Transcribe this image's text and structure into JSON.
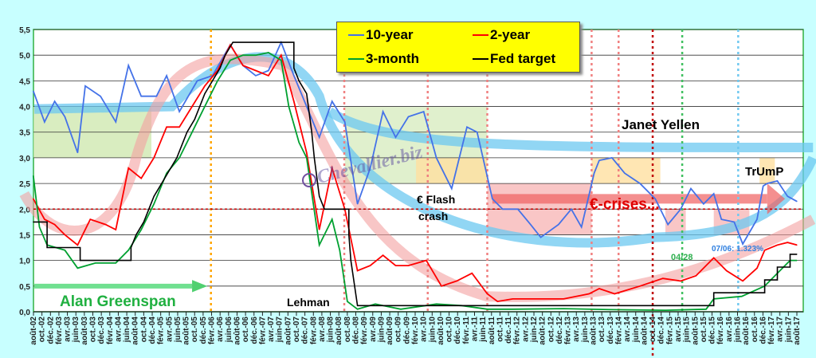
{
  "chart_data": {
    "type": "line",
    "title": "",
    "xlabel": "",
    "ylabel": "",
    "ylim": [
      0,
      5.5
    ],
    "xlim": [
      2002.583,
      2017.583
    ],
    "yticks": [
      "0,0",
      "0,5",
      "1,0",
      "1,5",
      "2,0",
      "2,5",
      "3,0",
      "3,5",
      "4,0",
      "4,5",
      "5,0",
      "5,5"
    ],
    "xticks": [
      "août-02",
      "oct.-02",
      "déc.-02",
      "févr.-03",
      "avr.-03",
      "juin-03",
      "août-03",
      "oct.-03",
      "déc.-03",
      "févr.-04",
      "avr.-04",
      "juin-04",
      "août-04",
      "oct.-04",
      "déc.-04",
      "févr.-05",
      "avr.-05",
      "juin-05",
      "août-05",
      "oct.-05",
      "déc.-05",
      "févr.-06",
      "avr.-06",
      "juin-06",
      "août-06",
      "oct.-06",
      "déc.-06",
      "févr.-07",
      "avr.-07",
      "juin-07",
      "août-07",
      "oct.-07",
      "déc.-07",
      "févr.-08",
      "avr.-08",
      "juin-08",
      "août-08",
      "oct.-08",
      "déc.-08",
      "févr.-09",
      "avr.-09",
      "juin-09",
      "août-09",
      "oct.-09",
      "déc.-09",
      "févr.-10",
      "avr.-10",
      "juin-10",
      "août-10",
      "oct.-10",
      "déc.-10",
      "févr.-11",
      "avr.-11",
      "juin-11",
      "août-11",
      "oct.-11",
      "déc.-11",
      "févr.-12",
      "avr.-12",
      "juin-12",
      "août-12",
      "oct.-12",
      "déc.-12",
      "févr.-13",
      "avr.-13",
      "juin-13",
      "août-13",
      "oct.-13",
      "déc.-13",
      "févr.-14",
      "avr.-14",
      "juin-14",
      "août-14",
      "oct.-14",
      "déc.-14",
      "févr.-15",
      "avr.-15",
      "juin-15",
      "août-15",
      "oct.-15",
      "déc.-15",
      "févr.-16",
      "avr.-16",
      "juin-16",
      "août-16",
      "oct.-16",
      "déc.-16",
      "févr.-17",
      "avr.-17",
      "juin-17",
      "août-17"
    ],
    "legend": {
      "position": "top-center",
      "entries": [
        "10-year",
        "2-year",
        "3-month",
        "Fed target"
      ]
    },
    "series": [
      {
        "name": "10-year",
        "color": "#4472e8",
        "points": [
          [
            2002.58,
            4.3
          ],
          [
            2002.8,
            3.7
          ],
          [
            2003.0,
            4.1
          ],
          [
            2003.2,
            3.8
          ],
          [
            2003.45,
            3.1
          ],
          [
            2003.6,
            4.4
          ],
          [
            2003.9,
            4.2
          ],
          [
            2004.2,
            3.7
          ],
          [
            2004.45,
            4.8
          ],
          [
            2004.7,
            4.2
          ],
          [
            2005.0,
            4.2
          ],
          [
            2005.2,
            4.6
          ],
          [
            2005.45,
            3.9
          ],
          [
            2005.8,
            4.5
          ],
          [
            2006.1,
            4.6
          ],
          [
            2006.45,
            5.2
          ],
          [
            2006.7,
            4.8
          ],
          [
            2006.95,
            4.6
          ],
          [
            2007.2,
            4.7
          ],
          [
            2007.45,
            5.25
          ],
          [
            2007.7,
            4.6
          ],
          [
            2007.95,
            4.0
          ],
          [
            2008.2,
            3.4
          ],
          [
            2008.45,
            4.1
          ],
          [
            2008.7,
            3.7
          ],
          [
            2008.95,
            2.1
          ],
          [
            2009.2,
            2.8
          ],
          [
            2009.45,
            3.9
          ],
          [
            2009.7,
            3.4
          ],
          [
            2009.95,
            3.8
          ],
          [
            2010.25,
            3.9
          ],
          [
            2010.5,
            3.0
          ],
          [
            2010.8,
            2.4
          ],
          [
            2011.1,
            3.6
          ],
          [
            2011.3,
            3.5
          ],
          [
            2011.6,
            2.2
          ],
          [
            2011.8,
            2.0
          ],
          [
            2012.1,
            2.0
          ],
          [
            2012.35,
            1.7
          ],
          [
            2012.55,
            1.45
          ],
          [
            2012.9,
            1.7
          ],
          [
            2013.15,
            2.0
          ],
          [
            2013.35,
            1.65
          ],
          [
            2013.6,
            2.7
          ],
          [
            2013.7,
            2.95
          ],
          [
            2013.95,
            3.0
          ],
          [
            2014.2,
            2.7
          ],
          [
            2014.5,
            2.5
          ],
          [
            2014.8,
            2.2
          ],
          [
            2015.05,
            1.7
          ],
          [
            2015.3,
            2.0
          ],
          [
            2015.5,
            2.4
          ],
          [
            2015.75,
            2.1
          ],
          [
            2015.95,
            2.3
          ],
          [
            2016.1,
            1.8
          ],
          [
            2016.35,
            1.75
          ],
          [
            2016.52,
            1.32
          ],
          [
            2016.8,
            1.8
          ],
          [
            2016.92,
            2.45
          ],
          [
            2017.0,
            2.5
          ],
          [
            2017.2,
            2.55
          ],
          [
            2017.4,
            2.25
          ],
          [
            2017.583,
            2.15
          ]
        ]
      },
      {
        "name": "2-year",
        "color": "#ff0000",
        "points": [
          [
            2002.58,
            2.2
          ],
          [
            2002.8,
            1.8
          ],
          [
            2003.0,
            1.7
          ],
          [
            2003.2,
            1.5
          ],
          [
            2003.45,
            1.3
          ],
          [
            2003.7,
            1.8
          ],
          [
            2004.0,
            1.7
          ],
          [
            2004.2,
            1.6
          ],
          [
            2004.45,
            2.8
          ],
          [
            2004.7,
            2.6
          ],
          [
            2004.95,
            3.0
          ],
          [
            2005.2,
            3.6
          ],
          [
            2005.45,
            3.6
          ],
          [
            2005.7,
            4.0
          ],
          [
            2005.95,
            4.4
          ],
          [
            2006.2,
            4.7
          ],
          [
            2006.45,
            5.2
          ],
          [
            2006.7,
            4.8
          ],
          [
            2006.95,
            4.7
          ],
          [
            2007.2,
            4.6
          ],
          [
            2007.45,
            5.0
          ],
          [
            2007.7,
            4.1
          ],
          [
            2007.95,
            3.1
          ],
          [
            2008.2,
            1.6
          ],
          [
            2008.45,
            2.8
          ],
          [
            2008.7,
            2.0
          ],
          [
            2008.95,
            0.8
          ],
          [
            2009.2,
            0.9
          ],
          [
            2009.45,
            1.1
          ],
          [
            2009.7,
            0.9
          ],
          [
            2009.95,
            0.9
          ],
          [
            2010.3,
            1.0
          ],
          [
            2010.6,
            0.5
          ],
          [
            2010.9,
            0.6
          ],
          [
            2011.2,
            0.75
          ],
          [
            2011.5,
            0.35
          ],
          [
            2011.7,
            0.2
          ],
          [
            2012.0,
            0.25
          ],
          [
            2012.5,
            0.25
          ],
          [
            2013.0,
            0.25
          ],
          [
            2013.5,
            0.35
          ],
          [
            2013.7,
            0.45
          ],
          [
            2014.0,
            0.35
          ],
          [
            2014.5,
            0.5
          ],
          [
            2014.95,
            0.65
          ],
          [
            2015.3,
            0.6
          ],
          [
            2015.6,
            0.7
          ],
          [
            2015.95,
            1.05
          ],
          [
            2016.2,
            0.8
          ],
          [
            2016.52,
            0.6
          ],
          [
            2016.8,
            0.85
          ],
          [
            2016.95,
            1.2
          ],
          [
            2017.2,
            1.3
          ],
          [
            2017.4,
            1.35
          ],
          [
            2017.583,
            1.3
          ]
        ]
      },
      {
        "name": "3-month",
        "color": "#00a030",
        "points": [
          [
            2002.58,
            2.65
          ],
          [
            2002.7,
            1.65
          ],
          [
            2002.85,
            1.3
          ],
          [
            2003.2,
            1.2
          ],
          [
            2003.45,
            0.85
          ],
          [
            2003.8,
            0.95
          ],
          [
            2004.2,
            0.95
          ],
          [
            2004.45,
            1.2
          ],
          [
            2004.7,
            1.6
          ],
          [
            2004.95,
            2.1
          ],
          [
            2005.2,
            2.7
          ],
          [
            2005.45,
            3.0
          ],
          [
            2005.7,
            3.5
          ],
          [
            2005.95,
            4.0
          ],
          [
            2006.2,
            4.5
          ],
          [
            2006.45,
            4.9
          ],
          [
            2006.7,
            5.0
          ],
          [
            2006.95,
            5.0
          ],
          [
            2007.2,
            5.05
          ],
          [
            2007.45,
            4.9
          ],
          [
            2007.6,
            4.0
          ],
          [
            2007.8,
            3.3
          ],
          [
            2007.95,
            3.0
          ],
          [
            2008.2,
            1.3
          ],
          [
            2008.45,
            1.8
          ],
          [
            2008.6,
            1.2
          ],
          [
            2008.75,
            0.2
          ],
          [
            2008.95,
            0.05
          ],
          [
            2009.3,
            0.15
          ],
          [
            2009.8,
            0.05
          ],
          [
            2010.5,
            0.15
          ],
          [
            2011.0,
            0.12
          ],
          [
            2011.5,
            0.05
          ],
          [
            2012.0,
            0.05
          ],
          [
            2013.0,
            0.06
          ],
          [
            2014.0,
            0.04
          ],
          [
            2015.0,
            0.03
          ],
          [
            2015.8,
            0.05
          ],
          [
            2015.95,
            0.25
          ],
          [
            2016.5,
            0.3
          ],
          [
            2016.95,
            0.5
          ],
          [
            2017.2,
            0.75
          ],
          [
            2017.45,
            1.0
          ],
          [
            2017.583,
            1.0
          ]
        ]
      },
      {
        "name": "Fed target",
        "color": "#000000",
        "points": [
          [
            2002.58,
            1.75
          ],
          [
            2002.85,
            1.75
          ],
          [
            2002.85,
            1.25
          ],
          [
            2003.5,
            1.25
          ],
          [
            2003.5,
            1.0
          ],
          [
            2004.5,
            1.0
          ],
          [
            2004.5,
            1.25
          ],
          [
            2004.6,
            1.5
          ],
          [
            2004.75,
            1.75
          ],
          [
            2004.85,
            2.0
          ],
          [
            2004.95,
            2.25
          ],
          [
            2005.1,
            2.5
          ],
          [
            2005.25,
            2.75
          ],
          [
            2005.4,
            3.0
          ],
          [
            2005.5,
            3.25
          ],
          [
            2005.6,
            3.5
          ],
          [
            2005.75,
            3.75
          ],
          [
            2005.85,
            4.0
          ],
          [
            2005.95,
            4.25
          ],
          [
            2006.1,
            4.5
          ],
          [
            2006.25,
            4.75
          ],
          [
            2006.35,
            5.0
          ],
          [
            2006.5,
            5.25
          ],
          [
            2007.7,
            5.25
          ],
          [
            2007.7,
            4.75
          ],
          [
            2007.8,
            4.5
          ],
          [
            2007.95,
            4.25
          ],
          [
            2008.05,
            3.5
          ],
          [
            2008.1,
            3.0
          ],
          [
            2008.2,
            2.25
          ],
          [
            2008.3,
            2.0
          ],
          [
            2008.78,
            2.0
          ],
          [
            2008.78,
            1.5
          ],
          [
            2008.82,
            1.0
          ],
          [
            2008.95,
            0.12
          ],
          [
            2015.95,
            0.12
          ],
          [
            2015.95,
            0.37
          ],
          [
            2016.95,
            0.37
          ],
          [
            2016.95,
            0.62
          ],
          [
            2017.2,
            0.62
          ],
          [
            2017.2,
            0.87
          ],
          [
            2017.45,
            0.87
          ],
          [
            2017.45,
            1.12
          ],
          [
            2017.583,
            1.12
          ]
        ]
      }
    ],
    "annotations": {
      "greenspan": "Alan Greenspan",
      "lehman": "Lehman",
      "flash_crash": "€ Flash\ncrash",
      "yellen": "Janet Yellen",
      "ecrises": "€-crises...",
      "trump": "TrUmP",
      "low_10y": "07/06: 1.323%",
      "date_0428": "04/28",
      "watermark": "Chevallier.biz"
    },
    "vlines": [
      {
        "t": 2006.07,
        "color": "#ffa500"
      },
      {
        "t": 2008.69,
        "color": "#f08080"
      },
      {
        "t": 2010.33,
        "color": "#f08080"
      },
      {
        "t": 2011.5,
        "color": "#f08080"
      },
      {
        "t": 2013.55,
        "color": "#f08080"
      },
      {
        "t": 2014.08,
        "color": "#f08080"
      },
      {
        "t": 2014.75,
        "color": "#c00000"
      },
      {
        "t": 2015.33,
        "color": "#40c060"
      },
      {
        "t": 2016.43,
        "color": "#70c8f0"
      }
    ],
    "hline": {
      "value": 2.0,
      "color": "#c00000"
    }
  }
}
